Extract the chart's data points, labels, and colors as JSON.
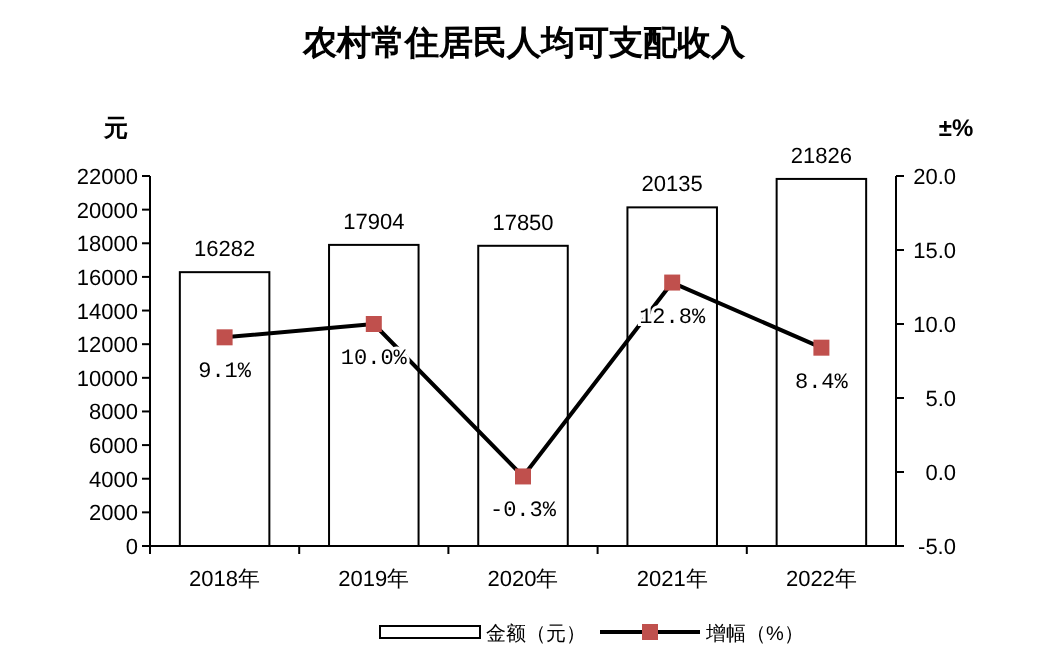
{
  "chart_data": {
    "type": "bar",
    "title": "农村常住居民人均可支配收入",
    "ylabel": "元",
    "y2label": "±%",
    "categories": [
      "2018年",
      "2019年",
      "2020年",
      "2021年",
      "2022年"
    ],
    "series": [
      {
        "name": "金额（元）",
        "color": "#ffffff",
        "values": [
          16282,
          17904,
          17850,
          20135,
          21826
        ],
        "value_labels": [
          "16282",
          "17904",
          "17850",
          "20135",
          "21826"
        ]
      },
      {
        "name": "增幅（%）",
        "type": "line",
        "axis": "y2",
        "color": "#000000",
        "colors": [
          "#c0504d",
          "#c0504d",
          "#c0504d",
          "#c0504d",
          "#c0504d"
        ],
        "marker": "square",
        "line_style": "solid",
        "values": [
          9.1,
          10.0,
          -0.3,
          12.8,
          8.4
        ],
        "value_labels": [
          "9.1%",
          "10.0%",
          "-0.3%",
          "12.8%",
          "8.4%"
        ]
      }
    ],
    "ylim": [
      0,
      22000
    ],
    "yticks": [
      0,
      2000,
      4000,
      6000,
      8000,
      10000,
      12000,
      14000,
      16000,
      18000,
      20000,
      22000
    ],
    "y2lim": [
      -5,
      20
    ],
    "y2ticks": [
      {
        "value": -5,
        "label": "-5.0"
      },
      {
        "value": 0,
        "label": "0.0"
      },
      {
        "value": 5,
        "label": "5.0"
      },
      {
        "value": 10,
        "label": "10.0"
      },
      {
        "value": 15,
        "label": "15.0"
      },
      {
        "value": 20,
        "label": "20.0"
      }
    ],
    "legend": "bottom",
    "grid": false
  }
}
